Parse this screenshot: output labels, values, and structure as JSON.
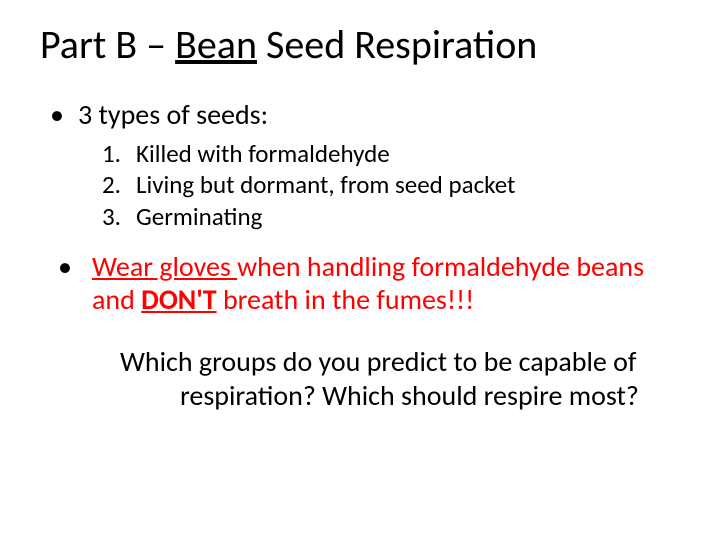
{
  "title": {
    "prefix": "Part B – ",
    "underlined": "Bean",
    "suffix": " Seed Respiration",
    "fontsize": 40
  },
  "bullet1": {
    "marker": "•",
    "text": "3 types of seeds:",
    "fontsize": 28
  },
  "numbered": {
    "items": [
      {
        "num": "1.",
        "text": "Killed with formaldehyde"
      },
      {
        "num": "2.",
        "text": "Living but dormant, from seed packet"
      },
      {
        "num": "3.",
        "text": "Germinating"
      }
    ],
    "fontsize": 25
  },
  "bullet2": {
    "marker": "•",
    "underlined": "Wear gloves ",
    "mid": "when handling formaldehyde beans and ",
    "bold_underlined": "DON'T",
    "tail": " breath in the fumes!!!",
    "color": "#ff0000",
    "fontsize": 28
  },
  "question": {
    "line": "Which groups do you predict to be capable of respiration?  Which should respire most?",
    "fontsize": 28
  },
  "colors": {
    "text": "#000000",
    "warning": "#ff0000",
    "background": "#ffffff"
  }
}
